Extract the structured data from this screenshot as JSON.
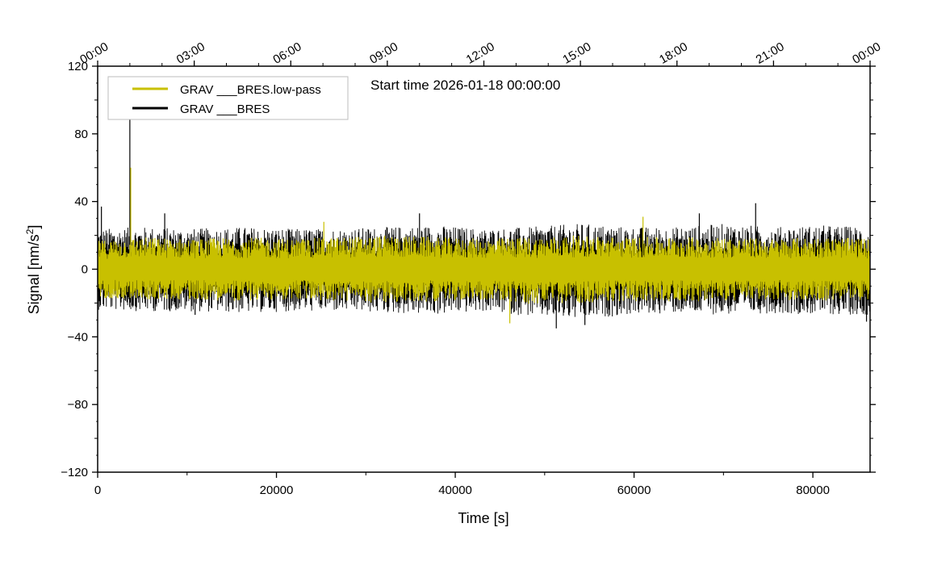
{
  "chart_data": {
    "type": "line",
    "title": "",
    "annotation": "Start time 2026-01-18 00:00:00",
    "xlabel": "Time [s]",
    "ylabel_main": "Signal [nm/s",
    "ylabel_sup": "2",
    "ylabel_tail": "]",
    "xlim": [
      0,
      86400
    ],
    "ylim": [
      -120,
      120
    ],
    "x_ticks": [
      0,
      20000,
      40000,
      60000,
      80000
    ],
    "x_tick_labels": [
      "0",
      "20000",
      "40000",
      "60000",
      "80000"
    ],
    "y_ticks": [
      -120,
      -80,
      -40,
      0,
      40,
      80,
      120
    ],
    "y_tick_labels": [
      "−120",
      "−80",
      "−40",
      "0",
      "40",
      "80",
      "120"
    ],
    "top_ticks": [
      0,
      10800,
      21600,
      32400,
      43200,
      54000,
      64800,
      75600,
      86400
    ],
    "top_tick_labels": [
      "00:00",
      "03:00",
      "06:00",
      "09:00",
      "12:00",
      "15:00",
      "18:00",
      "21:00",
      "00:00"
    ],
    "legend_position": "top-left",
    "grid": false,
    "series": [
      {
        "name": "GRAV ___BRES.low-pass",
        "color": "#c8c000",
        "envelope": {
          "x": [
            0,
            5400,
            10800,
            16200,
            21600,
            27000,
            32400,
            37800,
            43200,
            48600,
            54000,
            59400,
            64800,
            70200,
            75600,
            81000,
            86400
          ],
          "upper": [
            17,
            19,
            18,
            19,
            18,
            19,
            20,
            19,
            18,
            19,
            20,
            19,
            19,
            19,
            18,
            19,
            18
          ],
          "lower": [
            -17,
            -18,
            -18,
            -19,
            -18,
            -19,
            -20,
            -19,
            -18,
            -21,
            -20,
            -19,
            -19,
            -19,
            -18,
            -19,
            -18
          ]
        },
        "peaks": [
          {
            "x": 3700,
            "y": 60
          },
          {
            "x": 46100,
            "y": -32
          },
          {
            "x": 25300,
            "y": 28
          },
          {
            "x": 61000,
            "y": 31
          }
        ]
      },
      {
        "name": "GRAV ___BRES",
        "color": "#000000",
        "envelope": {
          "x": [
            0,
            5400,
            10800,
            16200,
            21600,
            27000,
            32400,
            37800,
            43200,
            48600,
            54000,
            59400,
            64800,
            70200,
            75600,
            81000,
            86400
          ],
          "upper": [
            24,
            25,
            24,
            25,
            24,
            24,
            25,
            26,
            24,
            25,
            27,
            25,
            25,
            27,
            25,
            26,
            25
          ],
          "lower": [
            -24,
            -25,
            -25,
            -26,
            -25,
            -25,
            -26,
            -27,
            -25,
            -28,
            -30,
            -27,
            -26,
            -27,
            -26,
            -27,
            -27
          ]
        },
        "peaks": [
          {
            "x": 3600,
            "y": 90
          },
          {
            "x": 73600,
            "y": 39
          },
          {
            "x": 420,
            "y": 37
          },
          {
            "x": 51300,
            "y": -35
          },
          {
            "x": 10900,
            "y": -27
          },
          {
            "x": 54500,
            "y": -33
          },
          {
            "x": 86000,
            "y": -31
          },
          {
            "x": 7500,
            "y": 33
          },
          {
            "x": 36000,
            "y": 33
          },
          {
            "x": 67300,
            "y": 33
          }
        ]
      }
    ]
  }
}
